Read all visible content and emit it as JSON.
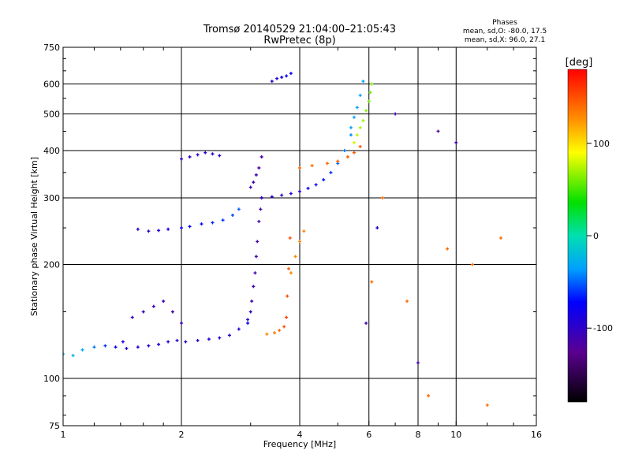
{
  "chart_data": {
    "type": "scatter",
    "title": "Tromsø 20140529 21:04:00–21:05:43",
    "subtitle": "RwPretec (8p)",
    "annotation": {
      "heading": "Phases",
      "line1": "mean, sd,O: -80.0, 17.5",
      "line2": "mean, sd,X:  96.0, 27.1"
    },
    "xlabel": "Frequency [MHz]",
    "ylabel": "Stationary phase Virtual Height [km]",
    "x_scale": "log",
    "y_scale": "log",
    "xlim": [
      1,
      16
    ],
    "ylim": [
      75,
      750
    ],
    "x_ticks": [
      1,
      2,
      4,
      6,
      8,
      10,
      16
    ],
    "x_grid": [
      2,
      4,
      6,
      8,
      10
    ],
    "y_ticks": [
      75,
      100,
      200,
      300,
      400,
      500,
      600,
      750
    ],
    "y_grid": [
      100,
      200,
      300,
      400,
      500,
      600
    ],
    "grid": true,
    "colorbar": {
      "label": "[deg]",
      "min": -180,
      "max": 180,
      "ticks": [
        -100,
        0,
        100
      ]
    },
    "series": [
      {
        "x": [
          1.0,
          1.06,
          1.12,
          1.2,
          1.28,
          1.36,
          1.42
        ],
        "y": [
          116,
          115,
          119,
          121,
          122,
          121,
          125
        ],
        "phase": [
          -30,
          -30,
          -35,
          -45,
          -60,
          -80,
          -90
        ]
      },
      {
        "x": [
          1.45,
          1.55,
          1.65,
          1.75,
          1.85,
          1.95,
          2.05,
          2.2,
          2.35,
          2.5,
          2.65,
          2.8,
          2.95
        ],
        "y": [
          120,
          121,
          122,
          123,
          125,
          126,
          125,
          126,
          127,
          128,
          130,
          135,
          143
        ],
        "phase": [
          -90,
          -92,
          -95,
          -95,
          -95,
          -95,
          -95,
          -95,
          -95,
          -95,
          -95,
          -95,
          -95
        ]
      },
      {
        "x": [
          1.5,
          1.6,
          1.7,
          1.8,
          1.9,
          2.0
        ],
        "y": [
          145,
          150,
          155,
          160,
          150,
          140
        ],
        "phase": [
          -100,
          -105,
          -108,
          -110,
          -108,
          -110
        ]
      },
      {
        "x": [
          2.95,
          3.0,
          3.02,
          3.05,
          3.08,
          3.1,
          3.12,
          3.15,
          3.18,
          3.2
        ],
        "y": [
          140,
          150,
          160,
          175,
          190,
          210,
          230,
          260,
          280,
          300
        ],
        "phase": [
          -80,
          -100,
          -110,
          -110,
          -110,
          -112,
          -112,
          -112,
          -112,
          -112
        ]
      },
      {
        "x": [
          3.0,
          3.05,
          3.1,
          3.15,
          3.2
        ],
        "y": [
          320,
          330,
          345,
          360,
          385
        ],
        "phase": [
          -112,
          -112,
          -112,
          -115,
          -115
        ]
      },
      {
        "x": [
          1.55,
          1.65,
          1.75,
          1.85,
          2.0,
          2.1,
          2.25,
          2.4,
          2.55,
          2.7,
          2.8
        ],
        "y": [
          248,
          245,
          246,
          248,
          250,
          252,
          256,
          258,
          262,
          270,
          280
        ],
        "phase": [
          -100,
          -95,
          -90,
          -85,
          -80,
          -75,
          -70,
          -65,
          -60,
          -55,
          -50
        ]
      },
      {
        "x": [
          2.0,
          2.1,
          2.2,
          2.3,
          2.4,
          2.5
        ],
        "y": [
          380,
          385,
          390,
          395,
          392,
          388
        ],
        "phase": [
          -100,
          -100,
          -100,
          -100,
          -100,
          -100
        ]
      },
      {
        "x": [
          3.2,
          3.4,
          3.6,
          3.8,
          4.0,
          4.2,
          4.4,
          4.6,
          4.8,
          5.0,
          5.2,
          5.4
        ],
        "y": [
          300,
          302,
          305,
          308,
          312,
          318,
          325,
          335,
          350,
          370,
          400,
          440
        ],
        "phase": [
          -100,
          -100,
          -95,
          -90,
          -85,
          -75,
          -70,
          -65,
          -60,
          -50,
          -45,
          -40
        ]
      },
      {
        "x": [
          5.4,
          5.5,
          5.6,
          5.7,
          5.8
        ],
        "y": [
          460,
          490,
          520,
          560,
          610
        ],
        "phase": [
          -35,
          -35,
          -35,
          -35,
          -35
        ]
      },
      {
        "x": [
          3.4,
          3.5,
          3.6,
          3.7,
          3.8
        ],
        "y": [
          610,
          620,
          625,
          630,
          640
        ],
        "phase": [
          -95,
          -90,
          -85,
          -80,
          -75
        ]
      },
      {
        "x": [
          3.3,
          3.45,
          3.55,
          3.65,
          3.7,
          3.72,
          3.75,
          3.78
        ],
        "y": [
          131,
          132,
          134,
          137,
          145,
          165,
          195,
          235
        ],
        "phase": [
          130,
          135,
          140,
          150,
          155,
          150,
          145,
          150
        ]
      },
      {
        "x": [
          3.8,
          3.9,
          4.0,
          4.1
        ],
        "y": [
          190,
          210,
          230,
          245
        ],
        "phase": [
          130,
          130,
          130,
          130
        ]
      },
      {
        "x": [
          4.0,
          4.3,
          4.7,
          5.0,
          5.3,
          5.5,
          5.7
        ],
        "y": [
          360,
          365,
          370,
          375,
          385,
          395,
          410
        ],
        "phase": [
          140,
          140,
          142,
          145,
          145,
          148,
          148
        ]
      },
      {
        "x": [
          5.5,
          5.6,
          5.7,
          5.8,
          5.9,
          6.0,
          6.05,
          6.1
        ],
        "y": [
          420,
          440,
          460,
          480,
          510,
          540,
          570,
          600
        ],
        "phase": [
          80,
          75,
          70,
          68,
          65,
          60,
          60,
          60
        ]
      },
      {
        "x": [
          5.9,
          6.1,
          6.3,
          6.5,
          7.0,
          7.5,
          8.0,
          8.5,
          9.0,
          9.5,
          10.0,
          11.0,
          12.0,
          13.0
        ],
        "y": [
          140,
          180,
          250,
          300,
          500,
          160,
          110,
          90,
          450,
          220,
          420,
          200,
          85,
          235
        ],
        "phase": [
          -110,
          140,
          -100,
          140,
          -110,
          140,
          -110,
          140,
          -120,
          140,
          -110,
          140,
          140,
          140
        ]
      }
    ]
  }
}
